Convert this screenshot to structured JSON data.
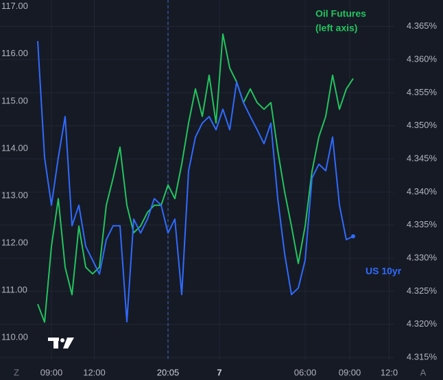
{
  "chart_data": {
    "type": "line",
    "annotation": "(left axis)",
    "x": [
      11,
      13,
      15,
      17,
      19,
      21,
      23,
      25,
      27,
      29,
      31,
      33,
      35,
      37,
      39,
      41,
      43,
      45,
      47,
      49,
      51,
      53,
      55,
      57,
      59,
      61,
      63,
      65,
      67,
      69,
      71,
      73,
      75,
      77,
      79,
      81,
      83,
      85,
      87,
      89,
      91,
      93,
      95,
      97,
      99,
      101,
      103
    ],
    "xlim": [
      0,
      115
    ],
    "xticks": [
      {
        "value": 15,
        "label": "09:00"
      },
      {
        "value": 27.5,
        "label": "12:00"
      },
      {
        "value": 49,
        "label": "20:05"
      },
      {
        "value": 64,
        "label": "7"
      },
      {
        "value": 89,
        "label": "06:00"
      },
      {
        "value": 102,
        "label": "09:00"
      },
      {
        "value": 113.5,
        "label": "12:0"
      }
    ],
    "ylim": [
      109.54,
      117.14
    ],
    "yticks": [
      {
        "value": 110,
        "label": "110.00"
      },
      {
        "value": 111,
        "label": "111.00"
      },
      {
        "value": 112,
        "label": "112.00"
      },
      {
        "value": 113,
        "label": "113.00"
      },
      {
        "value": 114,
        "label": "114.00"
      },
      {
        "value": 115,
        "label": "115.00"
      },
      {
        "value": 116,
        "label": "116.00"
      },
      {
        "value": 117,
        "label": "117.00"
      }
    ],
    "y2lim": [
      4.3147,
      4.369
    ],
    "y2ticks": [
      {
        "value": 4.315,
        "label": "4.315%"
      },
      {
        "value": 4.32,
        "label": "4.320%"
      },
      {
        "value": 4.325,
        "label": "4.325%"
      },
      {
        "value": 4.33,
        "label": "4.330%"
      },
      {
        "value": 4.335,
        "label": "4.335%"
      },
      {
        "value": 4.34,
        "label": "4.340%"
      },
      {
        "value": 4.345,
        "label": "4.345%"
      },
      {
        "value": 4.35,
        "label": "4.350%"
      },
      {
        "value": 4.355,
        "label": "4.355%"
      },
      {
        "value": 4.36,
        "label": "4.360%"
      },
      {
        "value": 4.365,
        "label": "4.365%"
      }
    ],
    "grid": true,
    "series": [
      {
        "name": "Oil Futures",
        "color": "#22c55e",
        "axis": "y",
        "values": [
          110.71,
          110.33,
          111.93,
          112.94,
          111.49,
          110.91,
          112.36,
          111.49,
          111.35,
          111.49,
          112.8,
          113.38,
          114.03,
          112.8,
          112.22,
          112.36,
          112.65,
          112.8,
          112.8,
          113.23,
          112.94,
          113.67,
          114.54,
          115.26,
          114.68,
          115.55,
          114.54,
          116.42,
          115.7,
          115.41,
          114.97,
          115.26,
          114.97,
          114.83,
          114.97,
          113.96,
          113.09,
          112.36,
          111.57,
          112.36,
          113.52,
          114.25,
          114.68,
          115.55,
          114.83,
          115.26,
          115.48
        ]
      },
      {
        "name": "US 10yr",
        "color": "#2f6bff",
        "axis": "y2",
        "values": [
          4.3628,
          4.3452,
          4.338,
          4.3452,
          4.3514,
          4.3349,
          4.338,
          4.3318,
          4.3297,
          4.3276,
          4.3328,
          4.3349,
          4.3349,
          4.3204,
          4.3359,
          4.3338,
          4.3359,
          4.339,
          4.338,
          4.3338,
          4.3359,
          4.3245,
          4.3432,
          4.3483,
          4.3504,
          4.3514,
          4.3494,
          4.3525,
          4.3494,
          4.3566,
          4.3535,
          4.3514,
          4.3494,
          4.3473,
          4.3504,
          4.339,
          4.3307,
          4.3245,
          4.3255,
          4.3297,
          4.3421,
          4.3442,
          4.3432,
          4.3483,
          4.338,
          4.3328,
          4.3333
        ]
      }
    ]
  },
  "buttons": [
    "Z",
    "A"
  ]
}
